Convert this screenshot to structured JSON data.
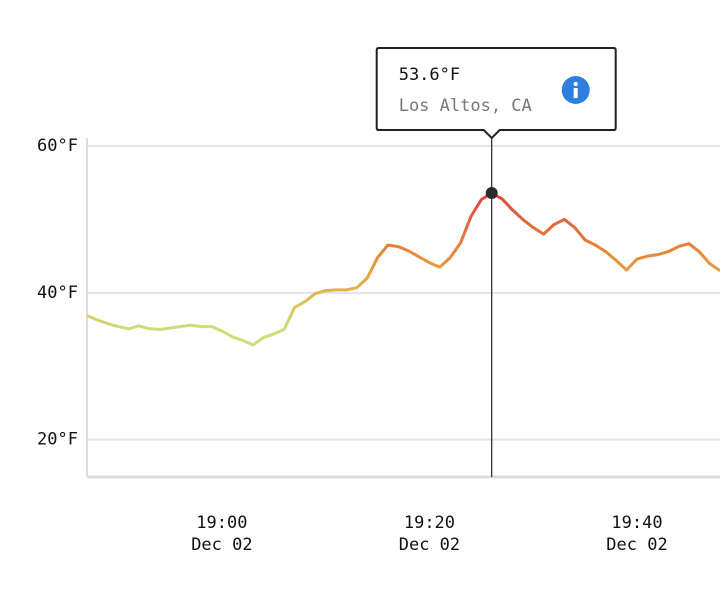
{
  "chart_data": {
    "type": "line",
    "x": [
      "18:47",
      "18:48",
      "18:49",
      "18:50",
      "18:51",
      "18:52",
      "18:53",
      "18:54",
      "18:55",
      "18:56",
      "18:57",
      "18:58",
      "18:59",
      "19:00",
      "19:01",
      "19:02",
      "19:03",
      "19:04",
      "19:05",
      "19:06",
      "19:07",
      "19:08",
      "19:09",
      "19:10",
      "19:11",
      "19:12",
      "19:13",
      "19:14",
      "19:15",
      "19:16",
      "19:17",
      "19:18",
      "19:19",
      "19:20",
      "19:21",
      "19:22",
      "19:23",
      "19:24",
      "19:25",
      "19:26",
      "19:27",
      "19:28",
      "19:29",
      "19:30",
      "19:31",
      "19:32",
      "19:33",
      "19:34",
      "19:35",
      "19:36",
      "19:37",
      "19:38",
      "19:39",
      "19:40",
      "19:41",
      "19:42",
      "19:43",
      "19:44",
      "19:45",
      "19:46",
      "19:47",
      "19:48"
    ],
    "values": [
      36.9,
      36.3,
      35.8,
      35.4,
      35.1,
      35.5,
      35.1,
      35.0,
      35.2,
      35.4,
      35.6,
      35.4,
      35.4,
      34.8,
      34.0,
      33.5,
      32.9,
      33.9,
      34.4,
      35.0,
      38.0,
      38.8,
      39.9,
      40.3,
      40.4,
      40.4,
      40.7,
      42.0,
      44.8,
      46.5,
      46.3,
      45.7,
      44.9,
      44.1,
      43.5,
      44.8,
      46.8,
      50.4,
      52.7,
      53.6,
      52.8,
      51.3,
      50.0,
      48.9,
      48.0,
      49.3,
      50.0,
      48.9,
      47.2,
      46.5,
      45.6,
      44.4,
      43.1,
      44.6,
      45.0,
      45.2,
      45.6,
      46.3,
      46.7,
      45.6,
      44.0,
      43.0
    ],
    "color_scale": [
      {
        "value": 35,
        "color": "#cfdc78"
      },
      {
        "value": 40,
        "color": "#e2b64a"
      },
      {
        "value": 46,
        "color": "#e5843a"
      },
      {
        "value": 53,
        "color": "#dc4a3f"
      }
    ],
    "xlim": [
      "18:47",
      "19:48"
    ],
    "xticks": [
      {
        "value": "19:00",
        "label": "19:00",
        "sublabel": "Dec 02"
      },
      {
        "value": "19:20",
        "label": "19:20",
        "sublabel": "Dec 02"
      },
      {
        "value": "19:40",
        "label": "19:40",
        "sublabel": "Dec 02"
      }
    ],
    "ylim": [
      14.9,
      61.1
    ],
    "yticks": [
      {
        "value": 20,
        "label": "20°F"
      },
      {
        "value": 40,
        "label": "40°F"
      },
      {
        "value": 60,
        "label": "60°F"
      }
    ],
    "grid": true,
    "tooltip": {
      "x": "19:26",
      "value": 53.6,
      "label": "53.6°F",
      "location": "Los Altos, CA"
    }
  }
}
